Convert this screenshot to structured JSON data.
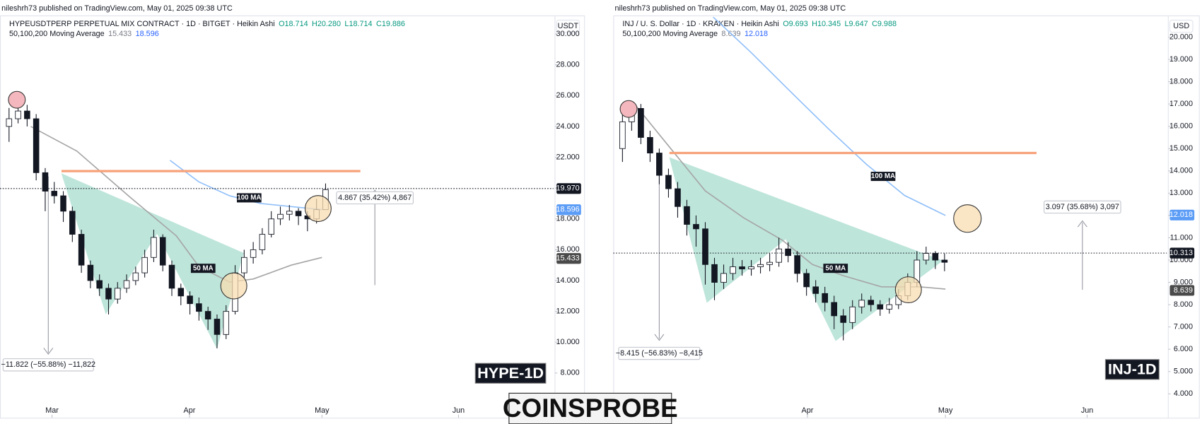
{
  "chart_data": [
    {
      "type": "candlestick",
      "author": "nileshrh73 published on TradingView.com, May 01, 2025 09:38 UTC",
      "symbol": "HYPEUSDTPERP PERPETUAL MIX CONTRACT · 1D · BITGET · Heikin Ashi",
      "ohlc": [
        "O18.714",
        "H20.280",
        "L18.714",
        "C19.886"
      ],
      "indicator": "50,100,200 Moving Average",
      "indicator_values": [
        "15.433",
        "18.596"
      ],
      "currency": "USDT",
      "up_color": "#ffffff",
      "down_color": "#131722",
      "wick_color": "#131722",
      "xlim": [
        0,
        122.4
      ],
      "xticks": [
        {
          "value": 11.5,
          "label": "Mar"
        },
        {
          "value": 41.9,
          "label": "Apr"
        },
        {
          "value": 71.2,
          "label": "May"
        },
        {
          "value": 101.4,
          "label": "Jun"
        }
      ],
      "ylim": [
        5.1,
        31.1
      ],
      "yticks": [
        {
          "value": 8,
          "label": "8.000"
        },
        {
          "value": 10,
          "label": "10.000"
        },
        {
          "value": 12,
          "label": "12.000"
        },
        {
          "value": 14,
          "label": "14.000"
        },
        {
          "value": 16,
          "label": "16.000"
        },
        {
          "value": 18,
          "label": "18.000"
        },
        {
          "value": 20,
          "label": "20.000"
        },
        {
          "value": 22,
          "label": "22.000"
        },
        {
          "value": 24,
          "label": "24.000"
        },
        {
          "value": 26,
          "label": "26.000"
        },
        {
          "value": 28,
          "label": "28.000"
        },
        {
          "value": 30,
          "label": "30.000"
        }
      ],
      "grid": false,
      "x": [
        2,
        4,
        6,
        8,
        10,
        12,
        14,
        16,
        18,
        20,
        22,
        24,
        26,
        28,
        30,
        32,
        34,
        36,
        38,
        40,
        42,
        44,
        46,
        48,
        50,
        52,
        54,
        56,
        58,
        60,
        62,
        64,
        66,
        68,
        70,
        72
      ],
      "open": [
        24,
        24.5,
        25,
        24.5,
        21,
        19.8,
        19.5,
        18.5,
        17,
        15,
        14,
        13.5,
        12.8,
        13.5,
        14,
        14.5,
        15.5,
        16.8,
        15,
        13.5,
        13,
        12.5,
        12,
        11.5,
        10.5,
        12,
        14.5,
        15.5,
        16,
        17,
        18,
        18.3,
        18.5,
        18.2,
        18,
        18.6
      ],
      "high": [
        25.2,
        26,
        25.4,
        24.8,
        21.3,
        20.4,
        19.8,
        18.8,
        17.3,
        15.3,
        14.4,
        13.8,
        13.9,
        14.4,
        14.9,
        16,
        17.3,
        17,
        15.3,
        13.8,
        13.3,
        12.9,
        12.3,
        11.8,
        12.4,
        15,
        16,
        16.5,
        17.4,
        18.5,
        18.8,
        18.9,
        18.7,
        18.5,
        19.3,
        20.3
      ],
      "low": [
        23,
        24.2,
        24,
        20.5,
        18.5,
        19,
        17.8,
        16.5,
        14.5,
        13.5,
        13,
        11.8,
        12.5,
        13.2,
        13.7,
        14.2,
        15.2,
        14.6,
        13,
        12.4,
        11.8,
        11.4,
        10.8,
        9.6,
        10.2,
        11.8,
        14.2,
        15.1,
        15.7,
        16.8,
        17.6,
        17.9,
        17.6,
        17.2,
        17.7,
        18.6
      ],
      "close": [
        24.5,
        25,
        24.5,
        21,
        19.8,
        19.5,
        18.5,
        17,
        15,
        14,
        13.5,
        12.8,
        13.5,
        14,
        14.5,
        15.5,
        16.8,
        15,
        13.5,
        13,
        12.5,
        12,
        11.5,
        10.5,
        12,
        14.5,
        15.5,
        16,
        17,
        18,
        18.3,
        18.5,
        18.2,
        18,
        18.6,
        19.9
      ],
      "series": [
        {
          "color": "#a5a5a5",
          "width": 1.5,
          "x": [
            6.8,
            17,
            28.8,
            39,
            44,
            50.8,
            56,
            64.4,
            71.2
          ],
          "values": [
            24,
            22.4,
            19.4,
            16.9,
            14.9,
            13.9,
            14.1,
            15,
            15.5
          ]
        },
        {
          "color": "#90bff9",
          "width": 1.5,
          "x": [
            37.6,
            44,
            50.8,
            57.6,
            64.4,
            71.2
          ],
          "values": [
            21.8,
            20.4,
            19.5,
            19,
            18.8,
            18.6
          ]
        },
        {
          "color": "#f7a27a",
          "width": 3,
          "x": [
            13.6,
            79.7
          ],
          "values": [
            21.1,
            21.1
          ]
        }
      ],
      "price_labels": [
        {
          "value": 19.97,
          "label": "19.970",
          "color": "#131722"
        },
        {
          "value": 18.596,
          "label": "18.596",
          "color": "#5b9cf6"
        },
        {
          "value": 15.433,
          "label": "15.433",
          "color": "#4a4a4a"
        }
      ],
      "annotations": {
        "ma100": "100 MA",
        "ma50": "50 MA",
        "gain": "4.867 (35.42%) 4,867",
        "drop": "−11.822 (−55.88%) −11,822",
        "tag": "HYPE-1D"
      }
    },
    {
      "type": "candlestick",
      "author": "nileshrh73 published on TradingView.com, May 01, 2025 09:38 UTC",
      "symbol": "INJ / U. S. Dollar · 1D · KRAKEN · Heikin Ashi",
      "ohlc": [
        "O9.693",
        "H10.345",
        "L9.647",
        "C9.988"
      ],
      "indicator": "50,100,200 Moving Average",
      "indicator_values": [
        "8.639",
        "12.018"
      ],
      "currency": "USD",
      "up_color": "#ffffff",
      "down_color": "#131722",
      "wick_color": "#131722",
      "xlim": [
        0,
        120.3
      ],
      "xticks": [
        {
          "value": 42.2,
          "label": "Apr"
        },
        {
          "value": 72.2,
          "label": "May"
        },
        {
          "value": 103,
          "label": "Jun"
        }
      ],
      "ylim": [
        2.93,
        20.9
      ],
      "yticks": [
        {
          "value": 4,
          "label": "4.000"
        },
        {
          "value": 5,
          "label": "5.000"
        },
        {
          "value": 6,
          "label": "6.000"
        },
        {
          "value": 7,
          "label": "7.000"
        },
        {
          "value": 8,
          "label": "8.000"
        },
        {
          "value": 9,
          "label": "9.000"
        },
        {
          "value": 10,
          "label": "10.000"
        },
        {
          "value": 11,
          "label": "11.000"
        },
        {
          "value": 12,
          "label": "12.000"
        },
        {
          "value": 13,
          "label": "13.000"
        },
        {
          "value": 14,
          "label": "14.000"
        },
        {
          "value": 15,
          "label": "15.000"
        },
        {
          "value": 16,
          "label": "16.000"
        },
        {
          "value": 17,
          "label": "17.000"
        },
        {
          "value": 18,
          "label": "18.000"
        },
        {
          "value": 19,
          "label": "19.000"
        },
        {
          "value": 20,
          "label": "20.000"
        }
      ],
      "grid": false,
      "x": [
        2,
        4,
        6,
        8,
        10,
        12,
        14,
        16,
        18,
        20,
        22,
        24,
        26,
        28,
        30,
        32,
        34,
        36,
        38,
        40,
        42,
        44,
        46,
        48,
        50,
        52,
        54,
        56,
        58,
        60,
        62,
        64,
        66,
        68,
        70,
        72
      ],
      "open": [
        15,
        16.2,
        16.8,
        15.5,
        14.8,
        13.8,
        13.2,
        12.4,
        11.6,
        11.4,
        9.8,
        9,
        9.4,
        9.7,
        9.6,
        9.7,
        9.8,
        9.9,
        10.5,
        10.2,
        9.4,
        8.8,
        8.5,
        8.1,
        7.5,
        7.2,
        7.9,
        8.2,
        8,
        7.8,
        8,
        8.4,
        9,
        10,
        10.3,
        10
      ],
      "high": [
        16.6,
        17.1,
        17,
        15.8,
        15,
        14.1,
        13.5,
        12.7,
        12,
        11.7,
        10.1,
        9.8,
        10.1,
        10,
        10,
        10.1,
        10.3,
        11,
        10.8,
        10.4,
        9.6,
        9.1,
        8.8,
        8.4,
        7.8,
        8.2,
        8.5,
        8.4,
        8.2,
        8.3,
        8.7,
        9.4,
        10.4,
        10.6,
        10.4,
        10.3
      ],
      "low": [
        14.4,
        15.8,
        15.2,
        14.4,
        13.4,
        12.8,
        11.9,
        11.1,
        10.6,
        8.9,
        8.2,
        8.7,
        9.1,
        9.3,
        9.3,
        9.4,
        9.5,
        9.7,
        9.9,
        9,
        8.4,
        8.1,
        7.7,
        6.9,
        6.4,
        6.9,
        7.6,
        7.7,
        7.5,
        7.6,
        7.8,
        8.2,
        8.8,
        9.8,
        9.6,
        9.5
      ],
      "close": [
        16.2,
        16.8,
        15.5,
        14.8,
        13.8,
        13.2,
        12.4,
        11.6,
        11.4,
        9.8,
        9,
        9.4,
        9.7,
        9.6,
        9.7,
        9.8,
        9.9,
        10.5,
        10.2,
        9.4,
        8.8,
        8.5,
        8.1,
        7.5,
        7.2,
        7.9,
        8.2,
        8,
        7.8,
        8,
        8.4,
        9,
        10,
        10.3,
        10,
        9.9
      ],
      "series": [
        {
          "color": "#a5a5a5",
          "width": 1.5,
          "x": [
            5,
            11.7,
            20,
            28.3,
            36.7,
            43.3,
            50,
            58.3,
            66.7,
            72.2
          ],
          "values": [
            16.9,
            15.2,
            13.1,
            11.9,
            10.9,
            9.8,
            9.3,
            8.8,
            8.8,
            8.7
          ]
        },
        {
          "color": "#90bff9",
          "width": 1.5,
          "x": [
            21.7,
            30,
            38.3,
            46.7,
            55,
            63.3,
            72.2
          ],
          "values": [
            20.9,
            19.3,
            17.6,
            15.9,
            14.3,
            12.9,
            12
          ]
        },
        {
          "color": "#f7a27a",
          "width": 3,
          "x": [
            12.2,
            92
          ],
          "values": [
            14.8,
            14.8
          ]
        }
      ],
      "price_labels": [
        {
          "value": 12.018,
          "label": "12.018",
          "color": "#5b9cf6"
        },
        {
          "value": 10.313,
          "label": "10.313",
          "color": "#131722"
        },
        {
          "value": 8.639,
          "label": "8.639",
          "color": "#4a4a4a"
        }
      ],
      "annotations": {
        "ma100": "100 MA",
        "ma50": "50 MA",
        "gain": "3.097 (35.68%) 3,097",
        "drop": "−8.415 (−56.83%) −8,415",
        "tag": "INJ-1D"
      }
    }
  ],
  "watermark": "COINSPROBE"
}
